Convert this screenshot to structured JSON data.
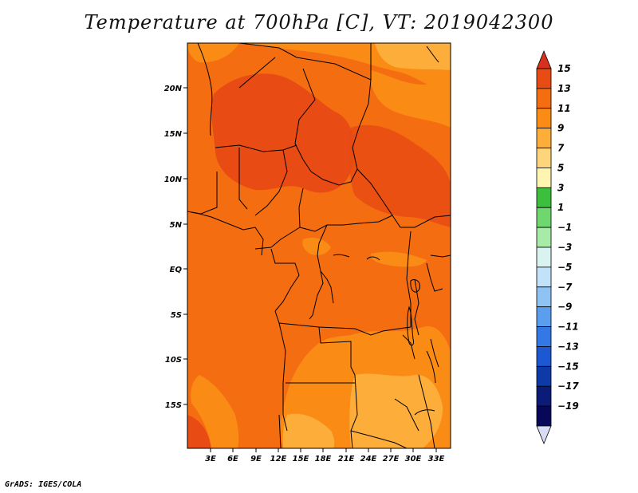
{
  "title": "Temperature at 700hPa [C], VT: 2019042300",
  "footer": "GrADS: IGES/COLA",
  "map": {
    "lat_labels": [
      "20N",
      "15N",
      "10N",
      "5N",
      "EQ",
      "5S",
      "10S",
      "15S"
    ],
    "lon_labels": [
      "3E",
      "6E",
      "9E",
      "12E",
      "15E",
      "18E",
      "21E",
      "24E",
      "27E",
      "30E",
      "33E"
    ]
  },
  "colorbar": {
    "labels": [
      "15",
      "13",
      "11",
      "9",
      "7",
      "5",
      "3",
      "1",
      "−1",
      "−3",
      "−5",
      "−7",
      "−9",
      "−11",
      "−13",
      "−15",
      "−17",
      "−19"
    ],
    "colors": [
      "#d7301f",
      "#e84b13",
      "#f46d10",
      "#fa8c15",
      "#fdae3a",
      "#fed57a",
      "#fff4b0",
      "#3cbf3c",
      "#6ed86e",
      "#a8eaa8",
      "#d8f3f0",
      "#c2e2fa",
      "#8ec3f4",
      "#5a9ef0",
      "#3478e6",
      "#1b58d2",
      "#0e3aa8",
      "#0a1c78",
      "#08085a",
      "#d8dcf4"
    ]
  }
}
